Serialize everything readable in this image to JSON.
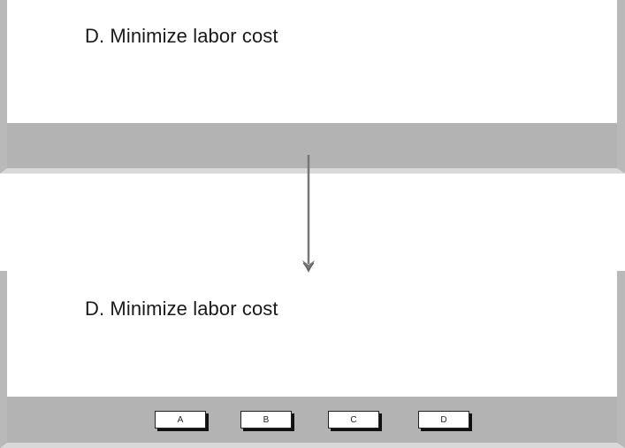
{
  "top_screen": {
    "answer_text": "D. Minimize labor cost"
  },
  "bottom_screen": {
    "answer_text": "D. Minimize labor cost",
    "buttons": [
      {
        "label": "A"
      },
      {
        "label": "B"
      },
      {
        "label": "C"
      },
      {
        "label": "D"
      }
    ]
  },
  "colors": {
    "toolbar": "#b3b3b3",
    "frame": "#b9b9b9",
    "arrow": "#777777"
  }
}
